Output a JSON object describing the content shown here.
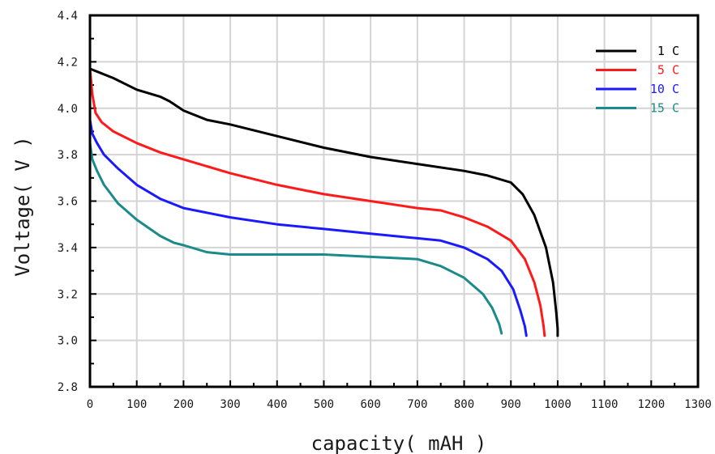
{
  "chart_data": {
    "type": "line",
    "xlabel": "capacity( mAH )",
    "ylabel": "Voltage( V )",
    "xlim": [
      0,
      1300
    ],
    "ylim": [
      2.8,
      4.4
    ],
    "x_ticks": [
      0,
      100,
      200,
      300,
      400,
      500,
      600,
      700,
      800,
      900,
      1000,
      1100,
      1200,
      1300
    ],
    "y_ticks": [
      2.8,
      3.0,
      3.2,
      3.4,
      3.6,
      3.8,
      4.0,
      4.2,
      4.4
    ],
    "x_tick_labels": [
      "0",
      "100",
      "200",
      "300",
      "400",
      "500",
      "600",
      "700",
      "800",
      "900",
      "1000",
      "1100",
      "1200",
      "1300"
    ],
    "y_tick_labels": [
      "2.8",
      "3.0",
      "3.2",
      "3.4",
      "3.6",
      "3.8",
      "4.0",
      "4.2",
      "4.4"
    ],
    "grid": true,
    "legend_position": "top-right",
    "series": [
      {
        "name": "1 C",
        "color": "#000000",
        "x": [
          0,
          25,
          50,
          100,
          150,
          170,
          200,
          250,
          300,
          400,
          500,
          600,
          700,
          800,
          850,
          900,
          925,
          950,
          975,
          990,
          997,
          1000,
          1000
        ],
        "y": [
          4.17,
          4.15,
          4.13,
          4.08,
          4.05,
          4.03,
          3.99,
          3.95,
          3.93,
          3.88,
          3.83,
          3.79,
          3.76,
          3.73,
          3.71,
          3.68,
          3.63,
          3.54,
          3.4,
          3.25,
          3.12,
          3.05,
          3.02
        ]
      },
      {
        "name": "5 C",
        "color": "#ff1a1a",
        "x": [
          0,
          5,
          12,
          25,
          50,
          100,
          150,
          200,
          300,
          400,
          500,
          600,
          700,
          750,
          800,
          850,
          900,
          930,
          950,
          963,
          970,
          972,
          972
        ],
        "y": [
          4.17,
          4.06,
          3.98,
          3.94,
          3.9,
          3.85,
          3.81,
          3.78,
          3.72,
          3.67,
          3.63,
          3.6,
          3.57,
          3.56,
          3.53,
          3.49,
          3.43,
          3.35,
          3.25,
          3.15,
          3.06,
          3.02,
          3.02
        ]
      },
      {
        "name": "10 C",
        "color": "#1a1aff",
        "x": [
          0,
          5,
          15,
          30,
          60,
          100,
          150,
          200,
          300,
          400,
          500,
          600,
          700,
          750,
          800,
          850,
          880,
          905,
          920,
          930,
          933,
          933
        ],
        "y": [
          3.95,
          3.89,
          3.85,
          3.8,
          3.74,
          3.67,
          3.61,
          3.57,
          3.53,
          3.5,
          3.48,
          3.46,
          3.44,
          3.43,
          3.4,
          3.35,
          3.3,
          3.22,
          3.13,
          3.06,
          3.02,
          3.02
        ]
      },
      {
        "name": "15 C",
        "color": "#1a8a8a",
        "x": [
          0,
          5,
          15,
          30,
          60,
          100,
          150,
          180,
          200,
          250,
          300,
          400,
          500,
          600,
          700,
          750,
          800,
          840,
          860,
          875,
          880,
          880
        ],
        "y": [
          3.85,
          3.78,
          3.73,
          3.67,
          3.59,
          3.52,
          3.45,
          3.42,
          3.41,
          3.38,
          3.37,
          3.37,
          3.37,
          3.36,
          3.35,
          3.32,
          3.27,
          3.2,
          3.14,
          3.07,
          3.03,
          3.03
        ]
      }
    ]
  }
}
